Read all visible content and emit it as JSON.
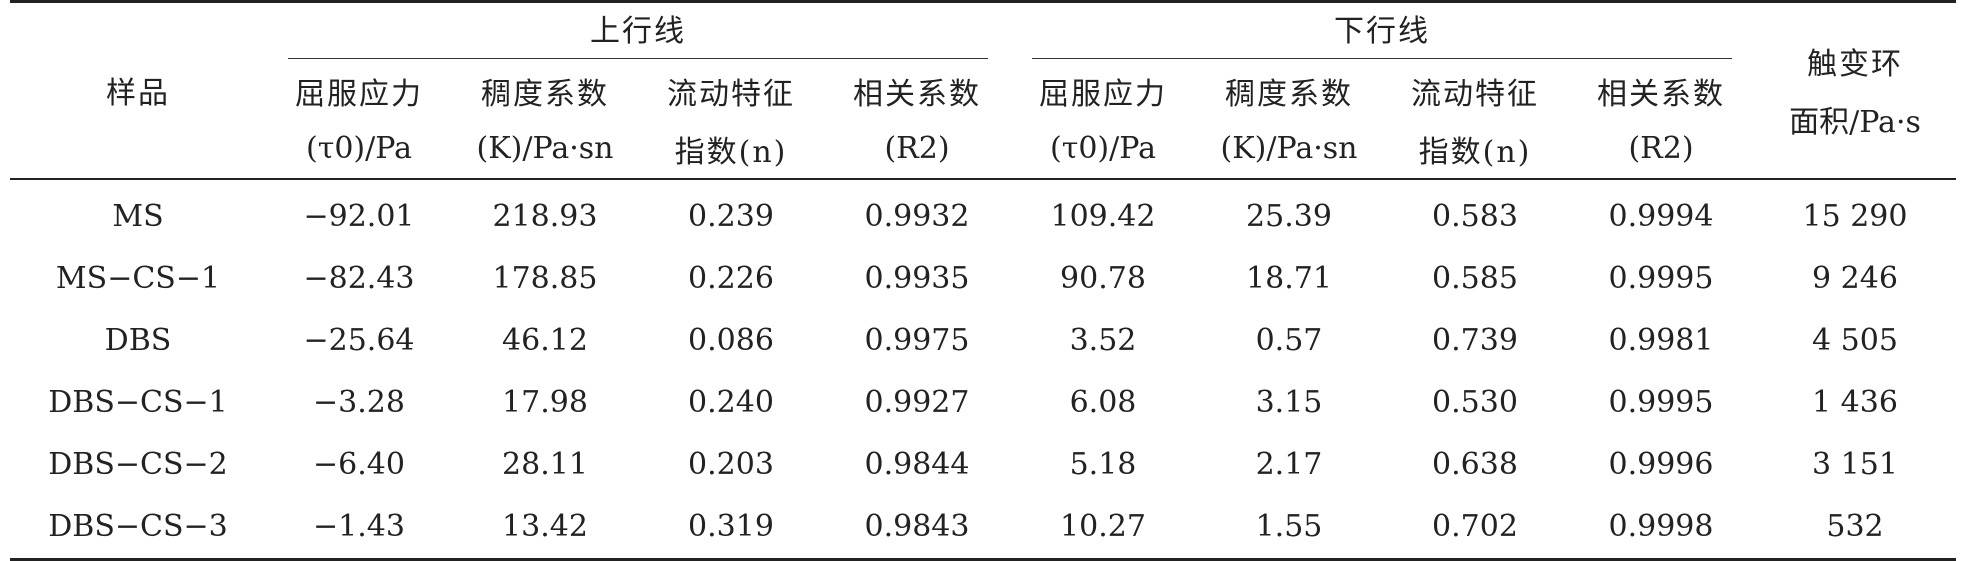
{
  "header": {
    "sample_label": "样品",
    "group_up": "上行线",
    "group_down": "下行线",
    "thixo_line1": "触变环",
    "thixo_line2": "面积/Pa·s",
    "sub": {
      "yield_line1": "屈服应力",
      "yield_unit": "(τ0)/Pa",
      "consistency_line1": "稠度系数",
      "consistency_unit": "(K)/Pa·sn",
      "flow_line1": "流动特征",
      "flow_line2": "指数(n)",
      "corr_line1": "相关系数",
      "corr_unit": "(R2)"
    }
  },
  "rows": [
    {
      "sample": "MS",
      "up_yield": "−92.01",
      "up_k": "218.93",
      "up_n": "0.239",
      "up_r2": "0.9932",
      "down_yield": "109.42",
      "down_k": "25.39",
      "down_n": "0.583",
      "down_r2": "0.9994",
      "area": "15 290"
    },
    {
      "sample": "MS−CS−1",
      "up_yield": "−82.43",
      "up_k": "178.85",
      "up_n": "0.226",
      "up_r2": "0.9935",
      "down_yield": "90.78",
      "down_k": "18.71",
      "down_n": "0.585",
      "down_r2": "0.9995",
      "area": "9 246"
    },
    {
      "sample": "DBS",
      "up_yield": "−25.64",
      "up_k": "46.12",
      "up_n": "0.086",
      "up_r2": "0.9975",
      "down_yield": "3.52",
      "down_k": "0.57",
      "down_n": "0.739",
      "down_r2": "0.9981",
      "area": "4 505"
    },
    {
      "sample": "DBS−CS−1",
      "up_yield": "−3.28",
      "up_k": "17.98",
      "up_n": "0.240",
      "up_r2": "0.9927",
      "down_yield": "6.08",
      "down_k": "3.15",
      "down_n": "0.530",
      "down_r2": "0.9995",
      "area": "1 436"
    },
    {
      "sample": "DBS−CS−2",
      "up_yield": "−6.40",
      "up_k": "28.11",
      "up_n": "0.203",
      "up_r2": "0.9844",
      "down_yield": "5.18",
      "down_k": "2.17",
      "down_n": "0.638",
      "down_r2": "0.9996",
      "area": "3 151"
    },
    {
      "sample": "DBS−CS−3",
      "up_yield": "−1.43",
      "up_k": "13.42",
      "up_n": "0.319",
      "up_r2": "0.9843",
      "down_yield": "10.27",
      "down_k": "1.55",
      "down_n": "0.702",
      "down_r2": "0.9998",
      "area": "532"
    }
  ]
}
